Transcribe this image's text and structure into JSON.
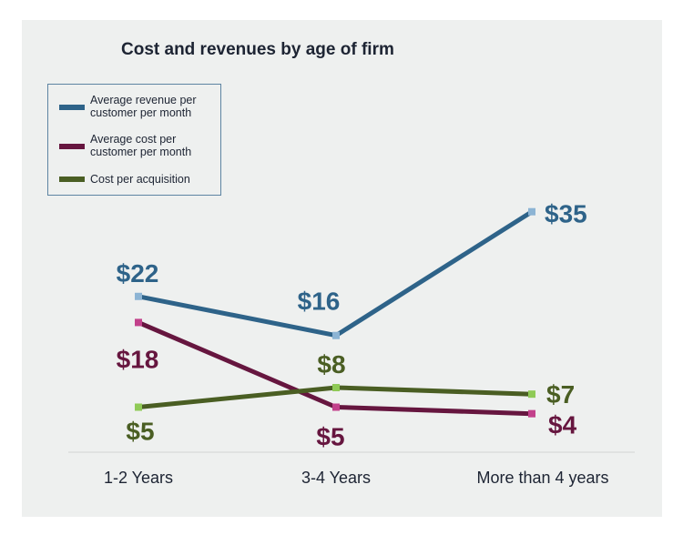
{
  "chart_data": {
    "type": "line",
    "title": "Cost and revenues by age of firm",
    "categories": [
      "1-2 Years",
      "3-4 Years",
      "More than 4 years"
    ],
    "series": [
      {
        "name": "Average revenue per customer per month",
        "values": [
          22,
          16,
          35
        ],
        "labels": [
          "$22",
          "$16",
          "$35"
        ],
        "color": "#2e6389",
        "marker_color": "#8cb4d4",
        "label_color": "#2e6389"
      },
      {
        "name": "Average cost per customer per month",
        "values": [
          18,
          5,
          4
        ],
        "labels": [
          "$18",
          "$5",
          "$4"
        ],
        "color": "#66163f",
        "marker_color": "#c2418b",
        "label_color": "#66163f"
      },
      {
        "name": "Cost per acquisition",
        "values": [
          5,
          8,
          7
        ],
        "labels": [
          "$5",
          "$8",
          "$7"
        ],
        "color": "#4a5e23",
        "marker_color": "#8fca56",
        "label_color": "#4a5e23"
      }
    ],
    "xlabel": "",
    "ylabel": "",
    "legend_position": "top-left",
    "grid": false
  }
}
